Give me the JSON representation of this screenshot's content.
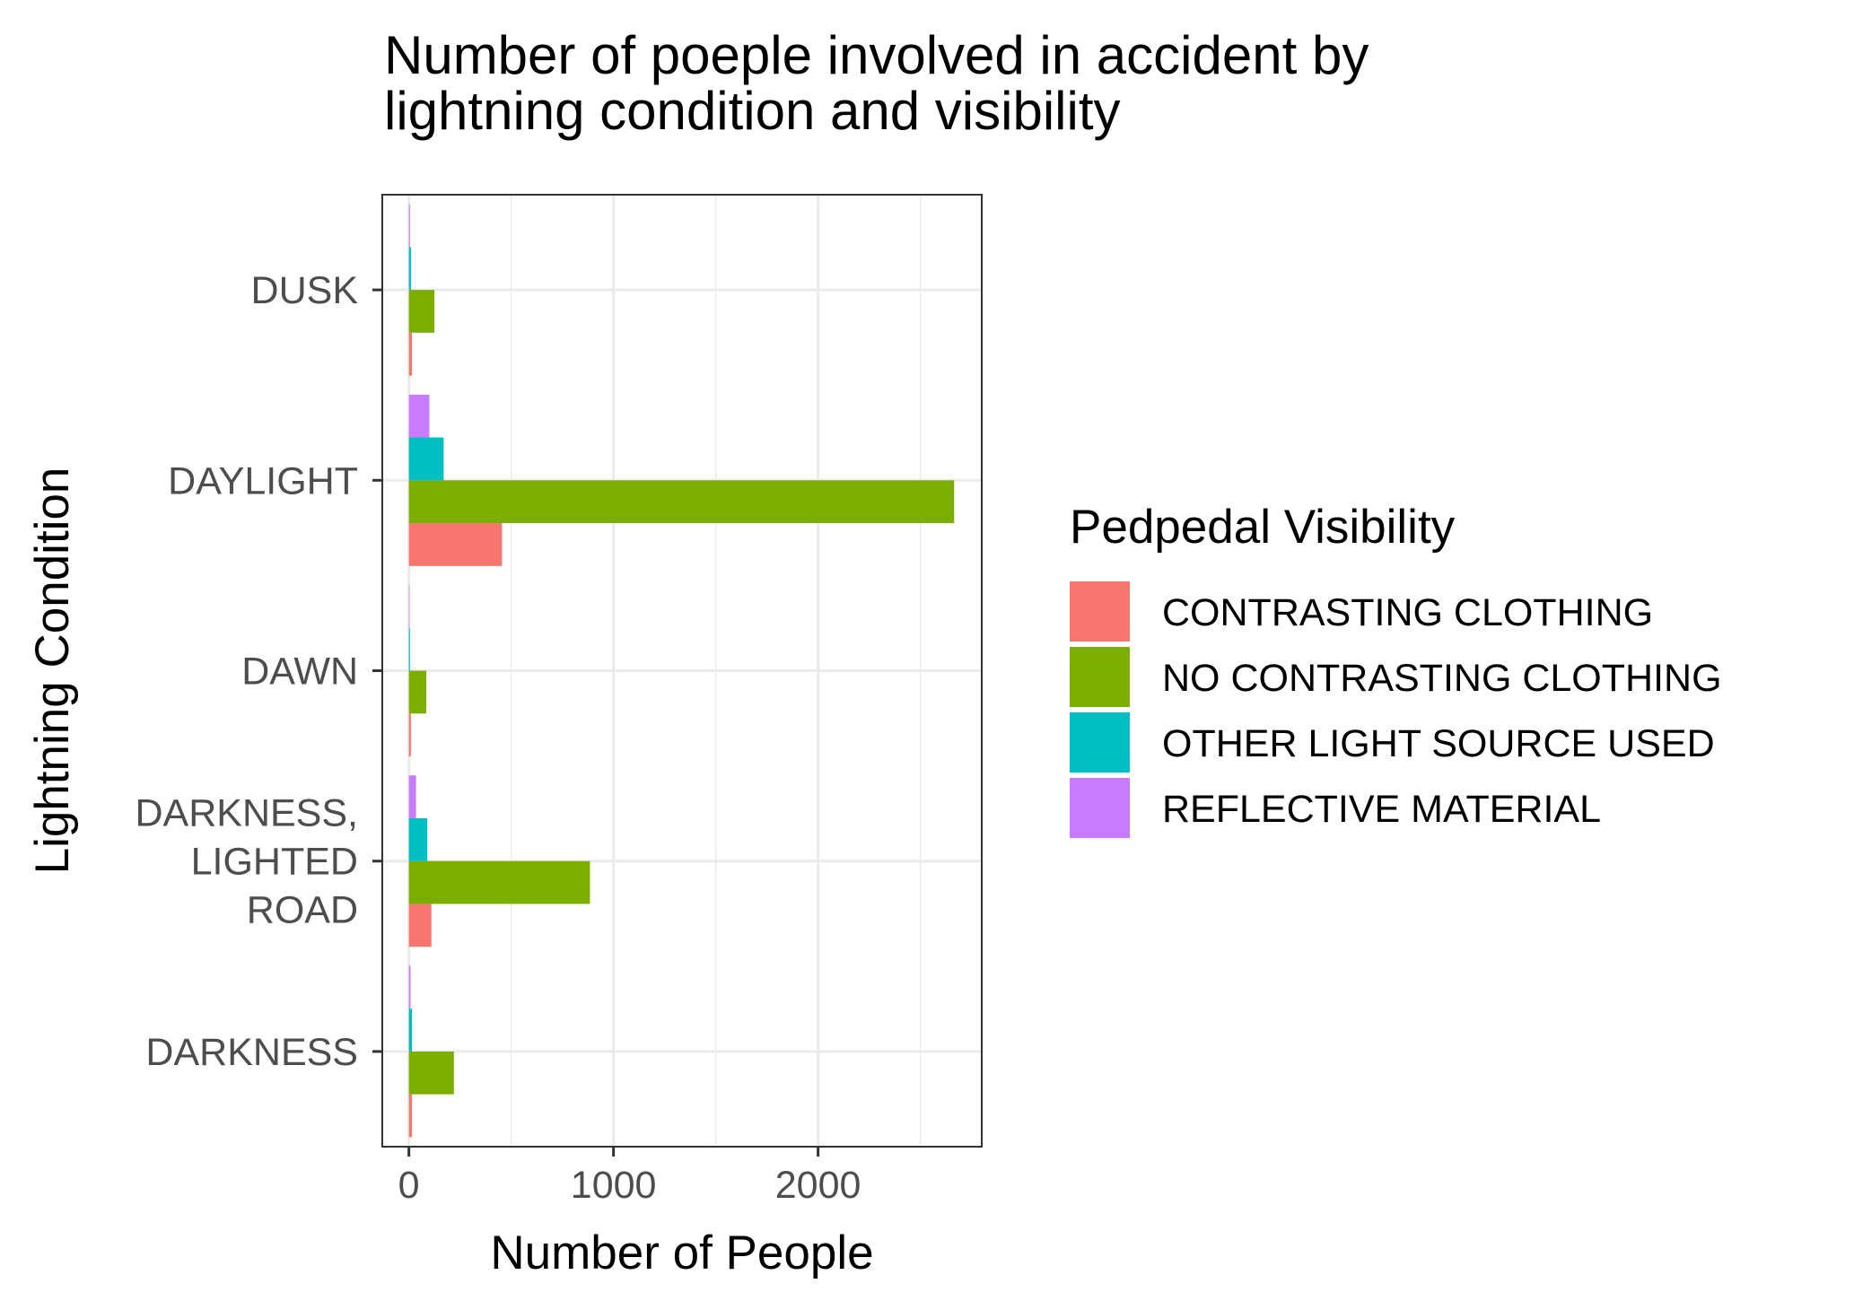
{
  "chart_data": {
    "type": "bar",
    "orientation": "horizontal",
    "title_lines": [
      "Number of poeple involved in accident by",
      "lightning condition and visibility"
    ],
    "xlabel": "Number of People",
    "ylabel": "Lightning Condition",
    "xlim": [
      -130,
      2800
    ],
    "x_ticks": [
      0,
      1000,
      2000
    ],
    "x_minor_gridlines": [
      500,
      1500,
      2500
    ],
    "grid": true,
    "categories": [
      {
        "label_lines": [
          "DUSK"
        ]
      },
      {
        "label_lines": [
          "DAYLIGHT"
        ]
      },
      {
        "label_lines": [
          "DAWN"
        ]
      },
      {
        "label_lines": [
          "DARKNESS,",
          "LIGHTED",
          "ROAD"
        ]
      },
      {
        "label_lines": [
          "DARKNESS"
        ]
      }
    ],
    "legend": {
      "title": "Pedpedal Visibility",
      "position": "right"
    },
    "series": [
      {
        "name": "CONTRASTING CLOTHING",
        "color": "#F8766D",
        "values": [
          15,
          455,
          10,
          110,
          15
        ]
      },
      {
        "name": "NO CONTRASTING CLOTHING",
        "color": "#7CAE00",
        "values": [
          125,
          2665,
          85,
          885,
          220
        ]
      },
      {
        "name": "OTHER LIGHT SOURCE USED",
        "color": "#00BFC4",
        "values": [
          10,
          170,
          5,
          90,
          15
        ]
      },
      {
        "name": "REFLECTIVE MATERIAL",
        "color": "#C77CFF",
        "values": [
          5,
          100,
          3,
          35,
          8
        ]
      }
    ]
  }
}
